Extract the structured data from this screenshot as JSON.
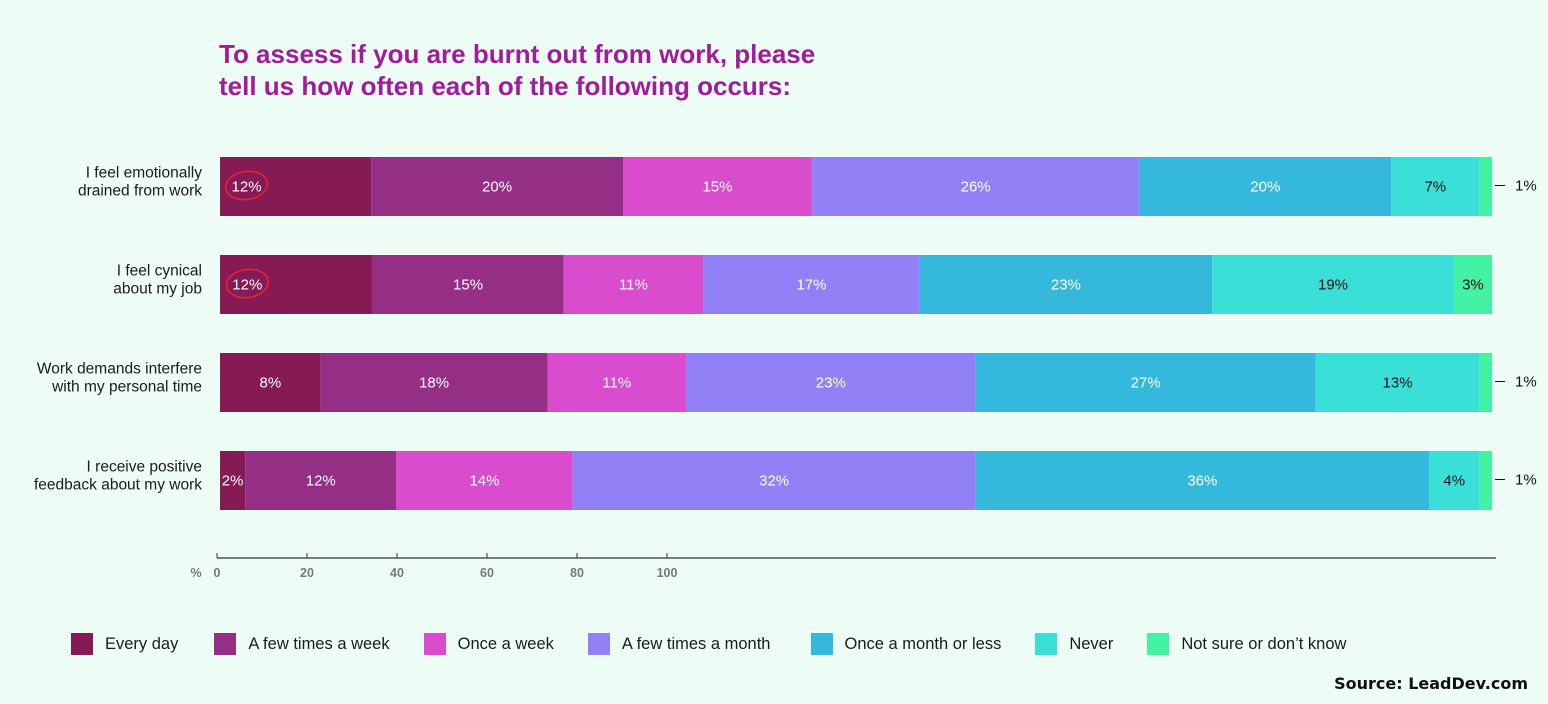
{
  "chart_data": {
    "type": "bar",
    "orientation": "horizontal",
    "stacked": true,
    "title": "To assess if you are burnt out from work, please tell us how often each of the following occurs:",
    "categories": [
      "I feel emotionally drained from work",
      "I feel cynical about my job",
      "Work demands interfere with my personal time",
      "I receive positive feedback about my work"
    ],
    "category_lines": [
      [
        "I feel emotionally",
        "drained from work"
      ],
      [
        "I feel cynical",
        "about my job"
      ],
      [
        "Work demands interfere",
        "with my personal time"
      ],
      [
        "I receive positive",
        "feedback about my work"
      ]
    ],
    "series": [
      {
        "name": "Every day",
        "color": "#861a55",
        "values": [
          12,
          12,
          8,
          2
        ]
      },
      {
        "name": "A few times a week",
        "color": "#952f86",
        "values": [
          20,
          15,
          18,
          12
        ]
      },
      {
        "name": "Once a week",
        "color": "#d94ccd",
        "values": [
          15,
          11,
          11,
          14
        ]
      },
      {
        "name": "A few times a month",
        "color": "#9180f6",
        "values": [
          26,
          17,
          23,
          32
        ]
      },
      {
        "name": "Once a month or less",
        "color": "#34b8dc",
        "values": [
          20,
          23,
          27,
          36
        ]
      },
      {
        "name": "Never",
        "color": "#3ae0d8",
        "values": [
          7,
          19,
          13,
          4
        ]
      },
      {
        "name": "Not sure or don't know",
        "color": "#44f2a5",
        "values": [
          1,
          3,
          1,
          1
        ]
      }
    ],
    "value_suffix": "%",
    "circled": [
      {
        "row": 0,
        "series": 0
      },
      {
        "row": 1,
        "series": 0
      }
    ],
    "xlabel": "%",
    "xticks": [
      0,
      20,
      40,
      60,
      80,
      100
    ],
    "legend_position": "bottom"
  },
  "legend": {
    "items": [
      {
        "label": "Every day",
        "color": "#861a55"
      },
      {
        "label": "A few times a week",
        "color": "#952f86"
      },
      {
        "label": "Once a week",
        "color": "#d94ccd"
      },
      {
        "label": "A few times a month",
        "color": "#9180f6"
      },
      {
        "label": "Once a month or less",
        "color": "#34b8dc"
      },
      {
        "label": "Never",
        "color": "#3ae0d8"
      },
      {
        "label": "Not sure or don’t know",
        "color": "#44f2a5"
      }
    ]
  },
  "source": "Source: LeadDev.com",
  "colors": {
    "title": "#a11b9a",
    "circle": "#e0262f",
    "background": "#eefcf6"
  }
}
